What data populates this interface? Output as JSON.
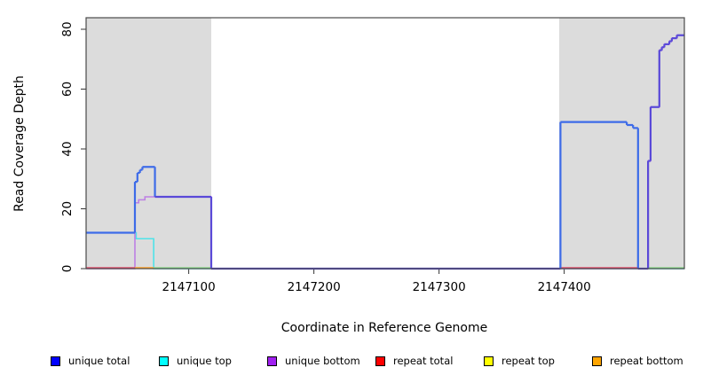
{
  "figure": {
    "background": "#ffffff",
    "plot_bg": "#ffffff",
    "highlight_color": "#dcdcdc",
    "border_color": "#4a4a4a",
    "tick_color": "#333333"
  },
  "chart_data": {
    "type": "line",
    "title": "",
    "xlabel": "Coordinate in Reference Genome",
    "ylabel": "Read Coverage Depth",
    "xlim": [
      2147018,
      2147496
    ],
    "ylim": [
      0,
      84
    ],
    "xticks": [
      2147100,
      2147200,
      2147300,
      2147400
    ],
    "yticks": [
      0,
      20,
      40,
      60,
      80
    ],
    "grid": false,
    "legend_position": "bottom",
    "highlight_regions": [
      {
        "from": 2147018,
        "to": 2147118
      },
      {
        "from": 2147396,
        "to": 2147496
      }
    ],
    "series": [
      {
        "name": "unique total",
        "legend_color": "#0000ff",
        "line_color": "#3d6be8",
        "overlap_color": "#5a49d8",
        "width": 2.2,
        "step": [
          [
            2147018,
            12
          ],
          [
            2147057,
            29
          ],
          [
            2147059,
            32
          ],
          [
            2147061,
            33
          ],
          [
            2147063,
            34
          ],
          [
            2147073,
            24
          ],
          [
            2147118,
            0
          ],
          [
            2147397,
            49
          ],
          [
            2147450,
            48
          ],
          [
            2147455,
            47
          ],
          [
            2147459,
            0
          ],
          [
            2147467,
            36
          ],
          [
            2147469,
            54
          ],
          [
            2147476,
            73
          ],
          [
            2147478,
            74
          ],
          [
            2147480,
            75
          ],
          [
            2147484,
            76
          ],
          [
            2147486,
            77
          ],
          [
            2147490,
            78
          ],
          [
            2147496,
            78
          ]
        ]
      },
      {
        "name": "unique top",
        "legend_color": "#00ffff",
        "line_color": "#4fe3e9",
        "width": 1.6,
        "step": [
          [
            2147018,
            12
          ],
          [
            2147058,
            10
          ],
          [
            2147072,
            0
          ],
          [
            2147496,
            0
          ]
        ]
      },
      {
        "name": "unique bottom",
        "legend_color": "#a020f0",
        "line_color": "#bd80e3",
        "width": 1.6,
        "step": [
          [
            2147018,
            0
          ],
          [
            2147057,
            22
          ],
          [
            2147060,
            23
          ],
          [
            2147065,
            24
          ],
          [
            2147118,
            0
          ],
          [
            2147467,
            36
          ],
          [
            2147469,
            54
          ],
          [
            2147476,
            73
          ],
          [
            2147478,
            74
          ],
          [
            2147480,
            75
          ],
          [
            2147484,
            76
          ],
          [
            2147486,
            77
          ],
          [
            2147490,
            78
          ],
          [
            2147496,
            78
          ]
        ]
      },
      {
        "name": "repeat total",
        "legend_color": "#ff0000",
        "line_color": "#e0506e",
        "width": 1.8,
        "step": [
          [
            2147018,
            0
          ],
          [
            2147496,
            0
          ]
        ]
      },
      {
        "name": "repeat top",
        "legend_color": "#ffff00",
        "line_color": "#8fd98f",
        "width": 1.6,
        "step": [
          [
            2147018,
            0
          ],
          [
            2147496,
            0
          ]
        ]
      },
      {
        "name": "repeat bottom",
        "legend_color": "#ffa500",
        "line_color": "#ffa028",
        "width": 2.0,
        "step": [
          [
            2147018,
            0
          ],
          [
            2147496,
            0
          ]
        ]
      }
    ],
    "baseline_visible_segments": [
      {
        "series": "repeat total",
        "from": 2147018,
        "to": 2147057,
        "color": "#e0506e"
      },
      {
        "series": "repeat bottom",
        "from": 2147057,
        "to": 2147072,
        "color": "#ffa028"
      },
      {
        "series": "repeat top",
        "from": 2147072,
        "to": 2147118,
        "color": "#8fd98f"
      },
      {
        "series": "repeat total",
        "from": 2147397,
        "to": 2147459,
        "color": "#e0506e"
      },
      {
        "series": "repeat top",
        "from": 2147467,
        "to": 2147496,
        "color": "#8fd98f"
      }
    ]
  }
}
